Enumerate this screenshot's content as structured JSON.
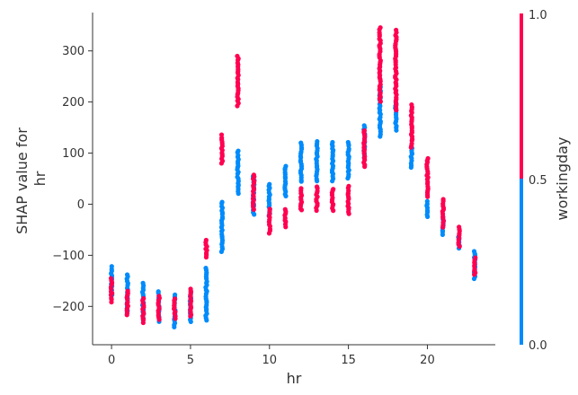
{
  "chart_data": {
    "type": "scatter",
    "xlabel": "hr",
    "ylabel_lines": [
      "SHAP value for",
      "hr"
    ],
    "xlim": [
      -1.2,
      24.3
    ],
    "ylim": [
      -275,
      375
    ],
    "xticks": [
      0,
      5,
      10,
      15,
      20
    ],
    "yticks": [
      -200,
      -100,
      0,
      100,
      200,
      300
    ],
    "ytick_labels": [
      "−200",
      "−100",
      "0",
      "100",
      "200",
      "300"
    ],
    "colorbar": {
      "title": "workingday",
      "ticks": [
        "0.0",
        "0.5",
        "1.0"
      ],
      "low_color": "#008bfb",
      "high_color": "#ff0051"
    },
    "series": [
      {
        "group": "workingday=0",
        "color": "#008bfb",
        "ranges": [
          [
            0,
            -180,
            -122
          ],
          [
            1,
            -215,
            -138
          ],
          [
            2,
            -230,
            -155
          ],
          [
            3,
            -232,
            -170
          ],
          [
            4,
            -245,
            -178
          ],
          [
            5,
            -235,
            -172
          ],
          [
            6,
            -228,
            -125
          ],
          [
            7,
            -95,
            5
          ],
          [
            8,
            18,
            105
          ],
          [
            9,
            -25,
            55
          ],
          [
            10,
            -25,
            40
          ],
          [
            11,
            15,
            75
          ],
          [
            12,
            40,
            120
          ],
          [
            13,
            45,
            122
          ],
          [
            14,
            45,
            122
          ],
          [
            15,
            50,
            122
          ],
          [
            16,
            90,
            155
          ],
          [
            17,
            132,
            230
          ],
          [
            18,
            145,
            200
          ],
          [
            19,
            70,
            110
          ],
          [
            20,
            -25,
            5
          ],
          [
            21,
            -60,
            -25
          ],
          [
            22,
            -90,
            -65
          ],
          [
            23,
            -148,
            -92
          ]
        ]
      },
      {
        "group": "workingday=1",
        "color": "#ff0051",
        "ranges": [
          [
            0,
            -195,
            -145
          ],
          [
            1,
            -218,
            -170
          ],
          [
            2,
            -232,
            -185
          ],
          [
            3,
            -230,
            -180
          ],
          [
            4,
            -225,
            -185
          ],
          [
            5,
            -220,
            -165
          ],
          [
            6,
            -105,
            -70
          ],
          [
            7,
            80,
            135
          ],
          [
            8,
            190,
            290
          ],
          [
            9,
            -10,
            58
          ],
          [
            10,
            -60,
            -10
          ],
          [
            11,
            -45,
            -10
          ],
          [
            12,
            -15,
            30
          ],
          [
            13,
            -15,
            35
          ],
          [
            14,
            -15,
            30
          ],
          [
            15,
            -20,
            35
          ],
          [
            16,
            70,
            145
          ],
          [
            17,
            200,
            345
          ],
          [
            18,
            180,
            340
          ],
          [
            19,
            110,
            195
          ],
          [
            20,
            10,
            90
          ],
          [
            21,
            -45,
            10
          ],
          [
            22,
            -85,
            -45
          ],
          [
            23,
            -140,
            -105
          ]
        ]
      }
    ]
  }
}
